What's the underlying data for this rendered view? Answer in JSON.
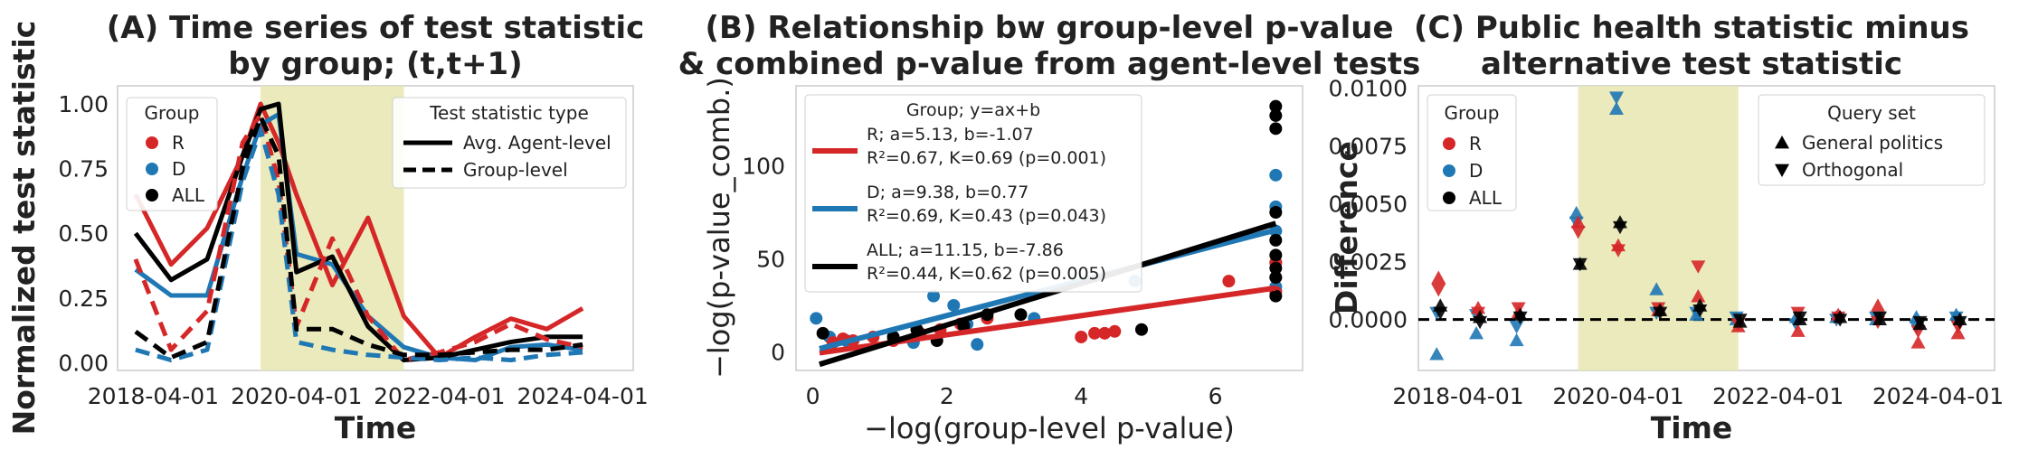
{
  "colors": {
    "R": "#d62728",
    "D": "#1f77b4",
    "ALL": "#000000",
    "shade": "#e6e6b0"
  },
  "chart_data": [
    {
      "type": "line",
      "title": [
        "(A) Time series of test statistic",
        "by group; (t,t+1)"
      ],
      "xlabel": "Time",
      "ylabel": "Normalized test statistic",
      "xticks": [
        "2018-04-01",
        "2020-04-01",
        "2022-04-01",
        "2024-04-01"
      ],
      "yticks": [
        "0.00",
        "0.25",
        "0.50",
        "0.75",
        "1.00"
      ],
      "ylim": [
        -0.03,
        1.07
      ],
      "shaded_period": [
        "2019-10-01",
        "2021-10-01"
      ],
      "x": [
        "2018-01-01",
        "2018-07-01",
        "2019-01-01",
        "2019-07-01",
        "2019-10-01",
        "2020-01-01",
        "2020-04-01",
        "2020-10-01",
        "2021-04-01",
        "2021-10-01",
        "2022-04-01",
        "2022-10-01",
        "2023-04-01",
        "2023-10-01",
        "2024-04-01",
        "2024-10-01"
      ],
      "legend_group": {
        "title": "Group",
        "entries": [
          "R",
          "D",
          "ALL"
        ]
      },
      "legend_type": {
        "title": "Test statistic type",
        "entries": [
          "Avg. Agent-level",
          "Group-level"
        ]
      },
      "series": [
        {
          "name": "R",
          "type": "Avg. Agent-level",
          "values": [
            0.65,
            0.38,
            0.52,
            0.8,
            1.0,
            0.85,
            0.65,
            0.3,
            0.56,
            0.18,
            0.02,
            0.1,
            0.17,
            0.13,
            0.21,
            null
          ]
        },
        {
          "name": "D",
          "type": "Avg. Agent-level",
          "values": [
            0.36,
            0.26,
            0.26,
            0.72,
            0.92,
            0.96,
            0.42,
            0.38,
            0.18,
            0.06,
            0.02,
            0.01,
            0.06,
            0.07,
            0.05,
            null
          ]
        },
        {
          "name": "ALL",
          "type": "Avg. Agent-level",
          "values": [
            0.5,
            0.32,
            0.4,
            0.8,
            0.98,
            1.0,
            0.35,
            0.41,
            0.14,
            0.01,
            0.02,
            0.05,
            0.08,
            0.1,
            0.1,
            null
          ]
        },
        {
          "name": "R",
          "type": "Group-level",
          "values": [
            0.4,
            0.05,
            0.2,
            0.85,
            0.96,
            0.7,
            0.14,
            0.48,
            0.18,
            0.01,
            0.04,
            0.08,
            0.15,
            0.09,
            0.06,
            null
          ]
        },
        {
          "name": "D",
          "type": "Group-level",
          "values": [
            0.05,
            0.01,
            0.05,
            0.7,
            0.9,
            0.65,
            0.08,
            0.05,
            0.03,
            0.02,
            0.01,
            0.02,
            0.01,
            0.03,
            0.04,
            null
          ]
        },
        {
          "name": "ALL",
          "type": "Group-level",
          "values": [
            0.12,
            0.02,
            0.08,
            0.75,
            0.95,
            0.8,
            0.13,
            0.13,
            0.07,
            0.03,
            0.03,
            0.04,
            0.05,
            0.05,
            0.07,
            null
          ]
        }
      ]
    },
    {
      "type": "scatter",
      "title": [
        "(B) Relationship bw group-level p-value",
        "& combined p-value from agent-level tests"
      ],
      "xlabel": "−log(group-level p-value)",
      "ylabel": "−log(p-value_comb.)",
      "xticks": [
        "0",
        "2",
        "4",
        "6"
      ],
      "yticks": [
        "0",
        "50",
        "100"
      ],
      "xlim": [
        -0.25,
        7.3
      ],
      "ylim": [
        -10,
        143
      ],
      "legend": {
        "title": "Group; y=ax+b",
        "entries": [
          {
            "group": "R",
            "line1": "R; a=5.13, b=-1.07",
            "line2": "R²=0.67, K=0.69 (p=0.001)",
            "a": 5.13,
            "b": -1.07
          },
          {
            "group": "D",
            "line1": "D; a=9.38, b=0.77",
            "line2": "R²=0.69, K=0.43 (p=0.043)",
            "a": 9.38,
            "b": 0.77
          },
          {
            "group": "ALL",
            "line1": "ALL; a=11.15, b=-7.86",
            "line2": "R²=0.44, K=0.62 (p=0.005)",
            "a": 11.15,
            "b": -7.86
          }
        ]
      },
      "points": {
        "R": [
          [
            0.3,
            5
          ],
          [
            0.45,
            7
          ],
          [
            0.6,
            6
          ],
          [
            0.9,
            8
          ],
          [
            1.2,
            6
          ],
          [
            1.6,
            10
          ],
          [
            1.9,
            12
          ],
          [
            2.2,
            15
          ],
          [
            2.6,
            18
          ],
          [
            4.0,
            8
          ],
          [
            4.2,
            10
          ],
          [
            4.35,
            10
          ],
          [
            4.5,
            11
          ],
          [
            6.2,
            38
          ],
          [
            6.9,
            32
          ],
          [
            6.9,
            40
          ],
          [
            6.9,
            48
          ]
        ],
        "D": [
          [
            0.05,
            18
          ],
          [
            0.25,
            8
          ],
          [
            0.5,
            6
          ],
          [
            1.5,
            5
          ],
          [
            1.8,
            30
          ],
          [
            2.1,
            25
          ],
          [
            2.3,
            15
          ],
          [
            2.45,
            4
          ],
          [
            3.3,
            18
          ],
          [
            4.8,
            38
          ],
          [
            6.9,
            35
          ],
          [
            6.9,
            48
          ],
          [
            6.9,
            65
          ],
          [
            6.9,
            78
          ],
          [
            6.9,
            95
          ],
          [
            6.9,
            33
          ]
        ],
        "ALL": [
          [
            0.15,
            10
          ],
          [
            1.2,
            8
          ],
          [
            1.55,
            12
          ],
          [
            1.85,
            6
          ],
          [
            2.25,
            14
          ],
          [
            2.6,
            20
          ],
          [
            3.1,
            20
          ],
          [
            4.9,
            12
          ],
          [
            6.9,
            30
          ],
          [
            6.9,
            40
          ],
          [
            6.9,
            45
          ],
          [
            6.9,
            52
          ],
          [
            6.9,
            60
          ],
          [
            6.9,
            75
          ],
          [
            6.9,
            120
          ],
          [
            6.9,
            127
          ],
          [
            6.9,
            132
          ]
        ]
      }
    },
    {
      "type": "scatter",
      "title": [
        "(C) Public health statistic minus",
        "alternative test statistic"
      ],
      "xlabel": "Time",
      "ylabel": "Difference",
      "xticks": [
        "2018-04-01",
        "2020-04-01",
        "2022-04-01",
        "2024-04-01"
      ],
      "yticks": [
        "0.0000",
        "0.0025",
        "0.0050",
        "0.0075",
        "0.0100"
      ],
      "ylim": [
        -0.0022,
        0.0101
      ],
      "shaded_period": [
        "2019-10-01",
        "2021-10-01"
      ],
      "legend_group": {
        "title": "Group",
        "entries": [
          "R",
          "D",
          "ALL"
        ]
      },
      "legend_query": {
        "title": "Query set",
        "entries": [
          "General politics",
          "Orthogonal"
        ]
      },
      "points": [
        {
          "x": "2018-01-01",
          "R": [
            0.0018,
            0.0013
          ],
          "D": [
            -0.0015,
            0.0003
          ],
          "ALL": [
            0.0006,
            0.0003
          ]
        },
        {
          "x": "2018-07-01",
          "R": [
            0.0005,
            0.0003
          ],
          "D": [
            -0.0006,
            0.0002
          ],
          "ALL": [
            0.0001,
            -0.0001
          ]
        },
        {
          "x": "2019-01-01",
          "R": [
            0.0003,
            0.0005
          ],
          "D": [
            -0.0009,
            -0.0003
          ],
          "ALL": [
            0.0002,
            0.0001
          ]
        },
        {
          "x": "2019-10-01",
          "R": [
            0.0042,
            0.0038
          ],
          "D": [
            0.0046,
            0.0042
          ],
          "ALL": [
            0.0024,
            0.0024
          ]
        },
        {
          "x": "2020-04-01",
          "R": [
            0.0032,
            0.003
          ],
          "D": [
            0.0091,
            0.0096
          ],
          "ALL": [
            0.0042,
            0.004
          ]
        },
        {
          "x": "2020-10-01",
          "R": [
            0.0004,
            0.0005
          ],
          "D": [
            0.0013,
            0.0003
          ],
          "ALL": [
            0.0004,
            0.0003
          ]
        },
        {
          "x": "2021-04-01",
          "R": [
            0.001,
            0.0023
          ],
          "D": [
            0.0002,
            0.0003
          ],
          "ALL": [
            0.0006,
            0.0004
          ]
        },
        {
          "x": "2021-10-01",
          "R": [
            -0.0003,
            -0.0002
          ],
          "D": [
            0.0,
            0.0001
          ],
          "ALL": [
            -0.0001,
            0.0
          ]
        },
        {
          "x": "2022-07-01",
          "R": [
            -0.0005,
            0.0003
          ],
          "D": [
            0.0001,
            -0.0002
          ],
          "ALL": [
            0.0,
            0.0001
          ]
        },
        {
          "x": "2023-01-01",
          "R": [
            0.0002,
            0.0001
          ],
          "D": [
            0.0001,
            0.0
          ],
          "ALL": [
            0.0001,
            0.0
          ]
        },
        {
          "x": "2023-07-01",
          "R": [
            0.0006,
            -0.0001
          ],
          "D": [
            0.0,
            0.0001
          ],
          "ALL": [
            0.0,
            0.0001
          ]
        },
        {
          "x": "2024-01-01",
          "R": [
            -0.001,
            -0.0005
          ],
          "D": [
            0.0001,
            -0.0003
          ],
          "ALL": [
            -0.0002,
            -0.0001
          ]
        },
        {
          "x": "2024-07-01",
          "R": [
            -0.0006,
            -0.0003
          ],
          "D": [
            0.0002,
            0.0001
          ],
          "ALL": [
            0.0,
            -0.0001
          ]
        }
      ]
    }
  ]
}
